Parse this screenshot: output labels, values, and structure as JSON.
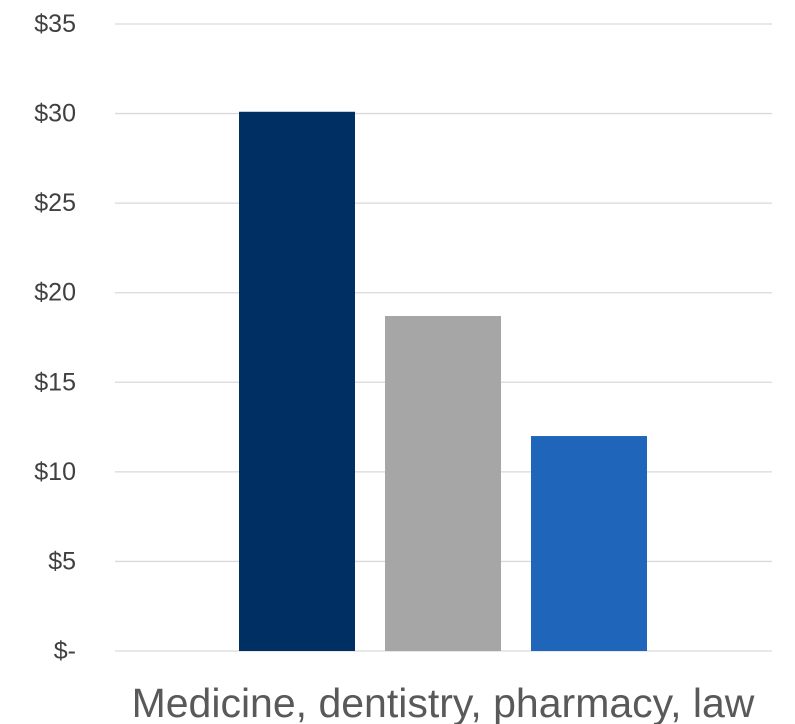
{
  "chart_data": {
    "type": "bar",
    "categories": [
      "Medicine, dentistry, pharmacy, law"
    ],
    "series": [
      {
        "values": [
          30.1
        ],
        "color": "#002F63"
      },
      {
        "values": [
          18.7
        ],
        "color": "#A6A6A6"
      },
      {
        "values": [
          12.0
        ],
        "color": "#1F66BA"
      }
    ],
    "ylim": [
      0,
      35
    ],
    "yticks": [
      0,
      5,
      10,
      15,
      20,
      25,
      30,
      35
    ],
    "ytick_labels": [
      "$-",
      "$5",
      "$10",
      "$15",
      "$20",
      "$25",
      "$30",
      "$35"
    ],
    "grid": true,
    "gridline_color": "#D9D9D9"
  }
}
